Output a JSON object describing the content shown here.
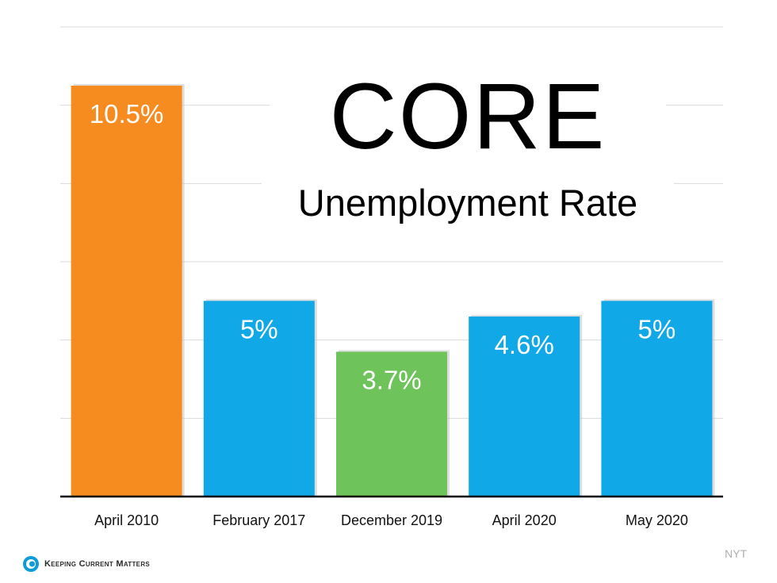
{
  "chart_data": {
    "type": "bar",
    "title": "CORE",
    "subtitle": "Unemployment Rate",
    "categories": [
      "April 2010",
      "February 2017",
      "December 2019",
      "April 2020",
      "May 2020"
    ],
    "values": [
      10.5,
      5,
      3.7,
      4.6,
      5
    ],
    "value_labels": [
      "10.5%",
      "5%",
      "3.7%",
      "4.6%",
      "5%"
    ],
    "colors": [
      "#F68B1F",
      "#10A8E6",
      "#6FC35B",
      "#10A8E6",
      "#10A8E6"
    ],
    "ylim": [
      0,
      12
    ],
    "grid": true,
    "legend": "none"
  },
  "source": "NYT",
  "logo": {
    "name": "Keeping Current Matters",
    "icon": "kcm-logo-icon"
  }
}
